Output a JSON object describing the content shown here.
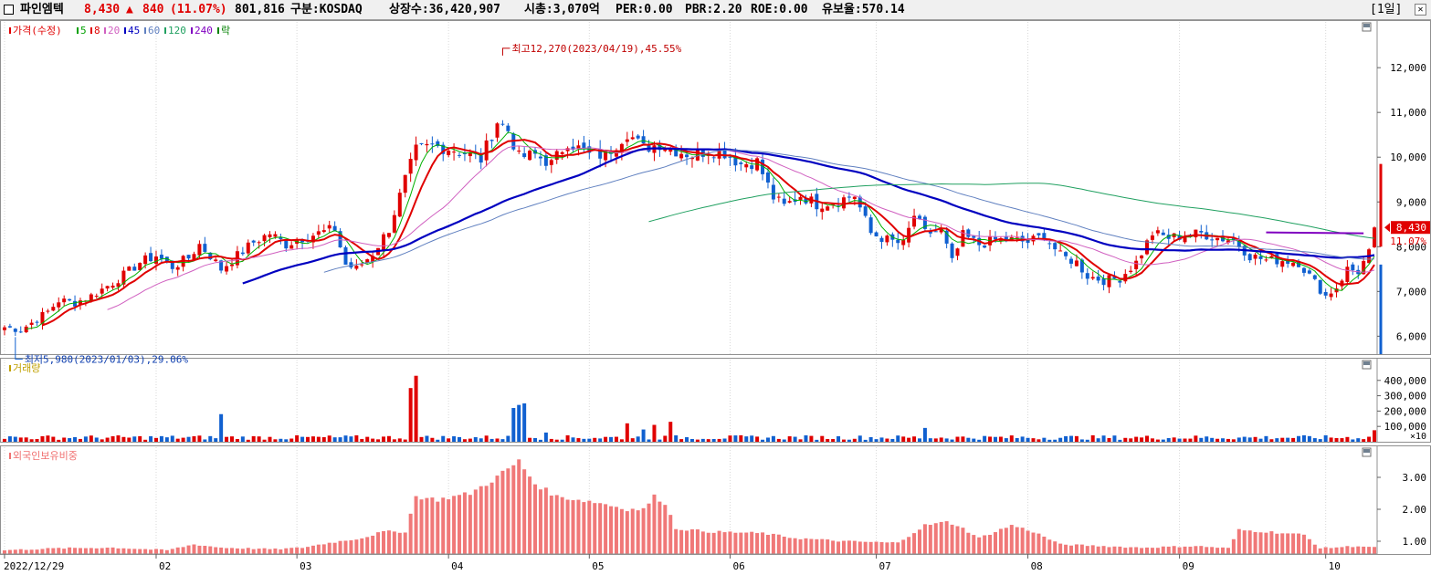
{
  "header": {
    "stock_name": "파인엠텍",
    "price": "8,430",
    "change_arrow": "▲",
    "change": "840",
    "change_pct": "(11.07%)",
    "volume": "801,816",
    "market": "구분:KOSDAQ",
    "listed_shares": "상장수:36,420,907",
    "market_cap": "시총:3,070억",
    "per": "PER:0.00",
    "pbr": "PBR:2.20",
    "roe": "ROE:0.00",
    "float_rate": "유보율:570.14",
    "period": "[1일]",
    "colors": {
      "up": "#e00000",
      "down": "#1060d0",
      "text": "#000000"
    }
  },
  "chart_data": [
    {
      "type": "candlestick",
      "panel": "price",
      "legend": [
        {
          "label": "가격(수정)",
          "color": "#e00000"
        },
        {
          "label": "5",
          "color": "#00a000"
        },
        {
          "label": "8",
          "color": "#e00000"
        },
        {
          "label": "20",
          "color": "#d060c0"
        },
        {
          "label": "45",
          "color": "#0000c0"
        },
        {
          "label": "60",
          "color": "#6080c0"
        },
        {
          "label": "120",
          "color": "#20a060"
        },
        {
          "label": "240",
          "color": "#8000c0"
        },
        {
          "label": "락",
          "color": "#008000"
        }
      ],
      "y_ticks": [
        "12,000",
        "11,000",
        "10,000",
        "9,000",
        "8,000",
        "7,000",
        "6,000"
      ],
      "y_values": [
        12000,
        11000,
        10000,
        9000,
        8000,
        7000,
        6000
      ],
      "ylim": [
        5600,
        12900
      ],
      "current_price_label": "8,430",
      "current_change_label": "11.07%",
      "current_price": 8430,
      "annotations": [
        {
          "text": "최고12,270(2023/04/19),45.55%",
          "bar": 92,
          "value": 12270
        },
        {
          "text": "최저5,980(2023/01/03),29.06%",
          "bar": 2,
          "value": 5980
        }
      ],
      "anchors": [
        [
          0,
          6200
        ],
        [
          3,
          6150
        ],
        [
          5,
          6300
        ],
        [
          8,
          6550
        ],
        [
          10,
          6800
        ],
        [
          13,
          6750
        ],
        [
          16,
          6900
        ],
        [
          20,
          7200
        ],
        [
          23,
          7450
        ],
        [
          25,
          7650
        ],
        [
          28,
          7800
        ],
        [
          31,
          7550
        ],
        [
          34,
          7750
        ],
        [
          36,
          8050
        ],
        [
          38,
          7800
        ],
        [
          40,
          7500
        ],
        [
          43,
          7800
        ],
        [
          46,
          8100
        ],
        [
          49,
          8300
        ],
        [
          52,
          8050
        ],
        [
          55,
          8200
        ],
        [
          58,
          8300
        ],
        [
          61,
          8400
        ],
        [
          63,
          7600
        ],
        [
          65,
          7500
        ],
        [
          68,
          7850
        ],
        [
          71,
          8400
        ],
        [
          74,
          9500
        ],
        [
          76,
          10150
        ],
        [
          79,
          10250
        ],
        [
          82,
          10200
        ],
        [
          85,
          10100
        ],
        [
          88,
          9950
        ],
        [
          91,
          10800
        ],
        [
          93,
          10600
        ],
        [
          95,
          10000
        ],
        [
          98,
          10050
        ],
        [
          101,
          9850
        ],
        [
          104,
          10350
        ],
        [
          108,
          10050
        ],
        [
          111,
          10050
        ],
        [
          115,
          10550
        ],
        [
          118,
          10200
        ],
        [
          121,
          10300
        ],
        [
          124,
          10150
        ],
        [
          127,
          10050
        ],
        [
          130,
          10150
        ],
        [
          133,
          10100
        ],
        [
          136,
          9850
        ],
        [
          139,
          9900
        ],
        [
          142,
          9100
        ],
        [
          144,
          8900
        ],
        [
          147,
          9150
        ],
        [
          150,
          8950
        ],
        [
          153,
          9000
        ],
        [
          157,
          9150
        ],
        [
          160,
          8300
        ],
        [
          163,
          8150
        ],
        [
          166,
          8050
        ],
        [
          168,
          8700
        ],
        [
          170,
          8300
        ],
        [
          173,
          8350
        ],
        [
          175,
          7650
        ],
        [
          177,
          8250
        ],
        [
          180,
          8050
        ],
        [
          183,
          8150
        ],
        [
          186,
          8150
        ],
        [
          189,
          8100
        ],
        [
          192,
          8250
        ],
        [
          195,
          7800
        ],
        [
          198,
          7650
        ],
        [
          200,
          7350
        ],
        [
          203,
          7250
        ],
        [
          206,
          7300
        ],
        [
          209,
          7650
        ],
        [
          212,
          8300
        ],
        [
          215,
          8200
        ],
        [
          218,
          8250
        ],
        [
          221,
          8300
        ],
        [
          224,
          8200
        ],
        [
          227,
          8150
        ],
        [
          230,
          7800
        ],
        [
          233,
          7700
        ],
        [
          236,
          7700
        ],
        [
          239,
          7650
        ],
        [
          242,
          7200
        ],
        [
          244,
          6900
        ],
        [
          246,
          7100
        ],
        [
          248,
          7500
        ],
        [
          250,
          7450
        ],
        [
          252,
          7850
        ],
        [
          253,
          8430
        ]
      ],
      "bar_count": 254
    },
    {
      "type": "bar",
      "panel": "volume",
      "legend": [
        {
          "label": "거래량",
          "color": "#c0a000"
        }
      ],
      "y_ticks": [
        "400,000",
        "300,000",
        "200,000",
        "100,000"
      ],
      "y_values": [
        400000,
        300000,
        200000,
        100000
      ],
      "unit_label": "×10",
      "ylim": [
        0,
        470000
      ],
      "spikes": [
        [
          40,
          180000
        ],
        [
          75,
          350000
        ],
        [
          76,
          430000
        ],
        [
          94,
          220000
        ],
        [
          95,
          240000
        ],
        [
          96,
          250000
        ],
        [
          100,
          60000
        ],
        [
          115,
          120000
        ],
        [
          118,
          80000
        ],
        [
          120,
          110000
        ],
        [
          123,
          130000
        ],
        [
          170,
          90000
        ],
        [
          253,
          75000
        ]
      ],
      "base_volume": 25000
    },
    {
      "type": "bar",
      "panel": "foreign_ownership",
      "legend": [
        {
          "label": "외국인보유비중",
          "color": "#f07070"
        }
      ],
      "y_ticks": [
        "3.00",
        "2.00",
        "1.00"
      ],
      "y_values": [
        3.0,
        2.0,
        1.0
      ],
      "ylim": [
        0.6,
        3.6
      ],
      "anchors": [
        [
          0,
          0.72
        ],
        [
          10,
          0.78
        ],
        [
          20,
          0.8
        ],
        [
          30,
          0.72
        ],
        [
          35,
          0.9
        ],
        [
          40,
          0.8
        ],
        [
          50,
          0.75
        ],
        [
          55,
          0.8
        ],
        [
          60,
          0.95
        ],
        [
          66,
          1.1
        ],
        [
          70,
          1.3
        ],
        [
          74,
          1.3
        ],
        [
          76,
          2.4
        ],
        [
          80,
          2.3
        ],
        [
          86,
          2.5
        ],
        [
          90,
          2.9
        ],
        [
          95,
          3.5
        ],
        [
          98,
          2.8
        ],
        [
          102,
          2.4
        ],
        [
          110,
          2.2
        ],
        [
          115,
          2.0
        ],
        [
          118,
          2.0
        ],
        [
          120,
          2.4
        ],
        [
          122,
          2.2
        ],
        [
          124,
          1.4
        ],
        [
          130,
          1.3
        ],
        [
          140,
          1.25
        ],
        [
          146,
          1.1
        ],
        [
          155,
          1.0
        ],
        [
          165,
          0.95
        ],
        [
          170,
          1.5
        ],
        [
          174,
          1.6
        ],
        [
          176,
          1.5
        ],
        [
          180,
          1.1
        ],
        [
          186,
          1.5
        ],
        [
          190,
          1.3
        ],
        [
          195,
          0.9
        ],
        [
          210,
          0.8
        ],
        [
          220,
          0.85
        ],
        [
          226,
          0.78
        ],
        [
          228,
          1.35
        ],
        [
          233,
          1.3
        ],
        [
          240,
          1.2
        ],
        [
          243,
          0.78
        ],
        [
          250,
          0.85
        ],
        [
          253,
          0.8
        ]
      ]
    }
  ],
  "x_axis": {
    "labels": [
      "2022/12/29",
      "02",
      "03",
      "04",
      "05",
      "06",
      "07",
      "08",
      "09",
      "10"
    ],
    "bar_index": [
      0,
      28,
      54,
      82,
      108,
      134,
      161,
      189,
      217,
      244
    ]
  },
  "panel_controls": {
    "minimize": "▣",
    "close": "▣"
  }
}
